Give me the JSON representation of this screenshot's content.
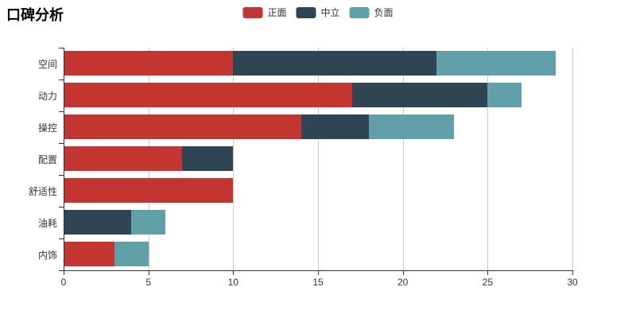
{
  "chart_data": {
    "type": "bar",
    "orientation": "horizontal",
    "stacked": true,
    "title": "口碑分析",
    "categories": [
      "空间",
      "动力",
      "操控",
      "配置",
      "舒适性",
      "油耗",
      "内饰"
    ],
    "series": [
      {
        "name": "正面",
        "color": "#c23531",
        "values": [
          10,
          17,
          14,
          7,
          10,
          0,
          3
        ]
      },
      {
        "name": "中立",
        "color": "#2f4554",
        "values": [
          12,
          8,
          4,
          3,
          0,
          4,
          0
        ]
      },
      {
        "name": "负面",
        "color": "#61a0a8",
        "values": [
          7,
          2,
          5,
          0,
          0,
          2,
          2
        ]
      }
    ],
    "totals": [
      29,
      27,
      23,
      10,
      10,
      6,
      5
    ],
    "xlim": [
      0,
      30
    ],
    "x_ticks": [
      0,
      5,
      10,
      15,
      20,
      25,
      30
    ],
    "xlabel": "",
    "ylabel": "",
    "grid": true,
    "legend_position": "top-center",
    "colors": {
      "axis_line": "#333333",
      "grid_line": "#cccccc",
      "tick_label": "#333333",
      "title_text": "#000000",
      "background": "#ffffff"
    }
  }
}
